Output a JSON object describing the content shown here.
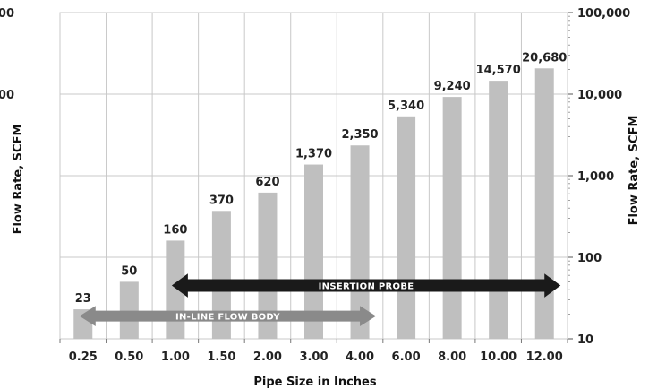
{
  "chart_data": {
    "type": "bar",
    "categories": [
      "0.25",
      "0.50",
      "1.00",
      "1.50",
      "2.00",
      "3.00",
      "4.00",
      "6.00",
      "8.00",
      "10.00",
      "12.00"
    ],
    "values": [
      23,
      50,
      160,
      370,
      620,
      1370,
      2350,
      5340,
      9240,
      14570,
      20680
    ],
    "data_labels": [
      "23",
      "50",
      "160",
      "370",
      "620",
      "1,370",
      "2,350",
      "5,340",
      "9,240",
      "14,570",
      "20,680"
    ],
    "title": "",
    "xlabel": "Pipe Size in Inches",
    "ylabel": "Flow Rate, SCFM",
    "y2label": "Flow Rate, SCFM",
    "yscale": "log",
    "ylim": [
      10,
      100000
    ],
    "yticks": [
      10,
      100,
      1000,
      10000,
      100000
    ],
    "ytick_labels_right": [
      "10",
      "100",
      "1,000",
      "10,000",
      "100,000"
    ],
    "ytick_labels_left_visible": [
      "000",
      "00"
    ],
    "grid": true,
    "colors": {
      "bar": "#bfbfbf",
      "grid": "#c8c8c8",
      "insertion_arrow": "#1a1a1a",
      "inline_arrow": "#8a8a8a"
    },
    "annotations": [
      {
        "label": "INSERTION PROBE",
        "from": "1.00",
        "to": "12.00",
        "y": 45
      },
      {
        "label": "IN-LINE FLOW BODY",
        "from": "0.25",
        "to": "4.00",
        "y": 19
      }
    ]
  }
}
